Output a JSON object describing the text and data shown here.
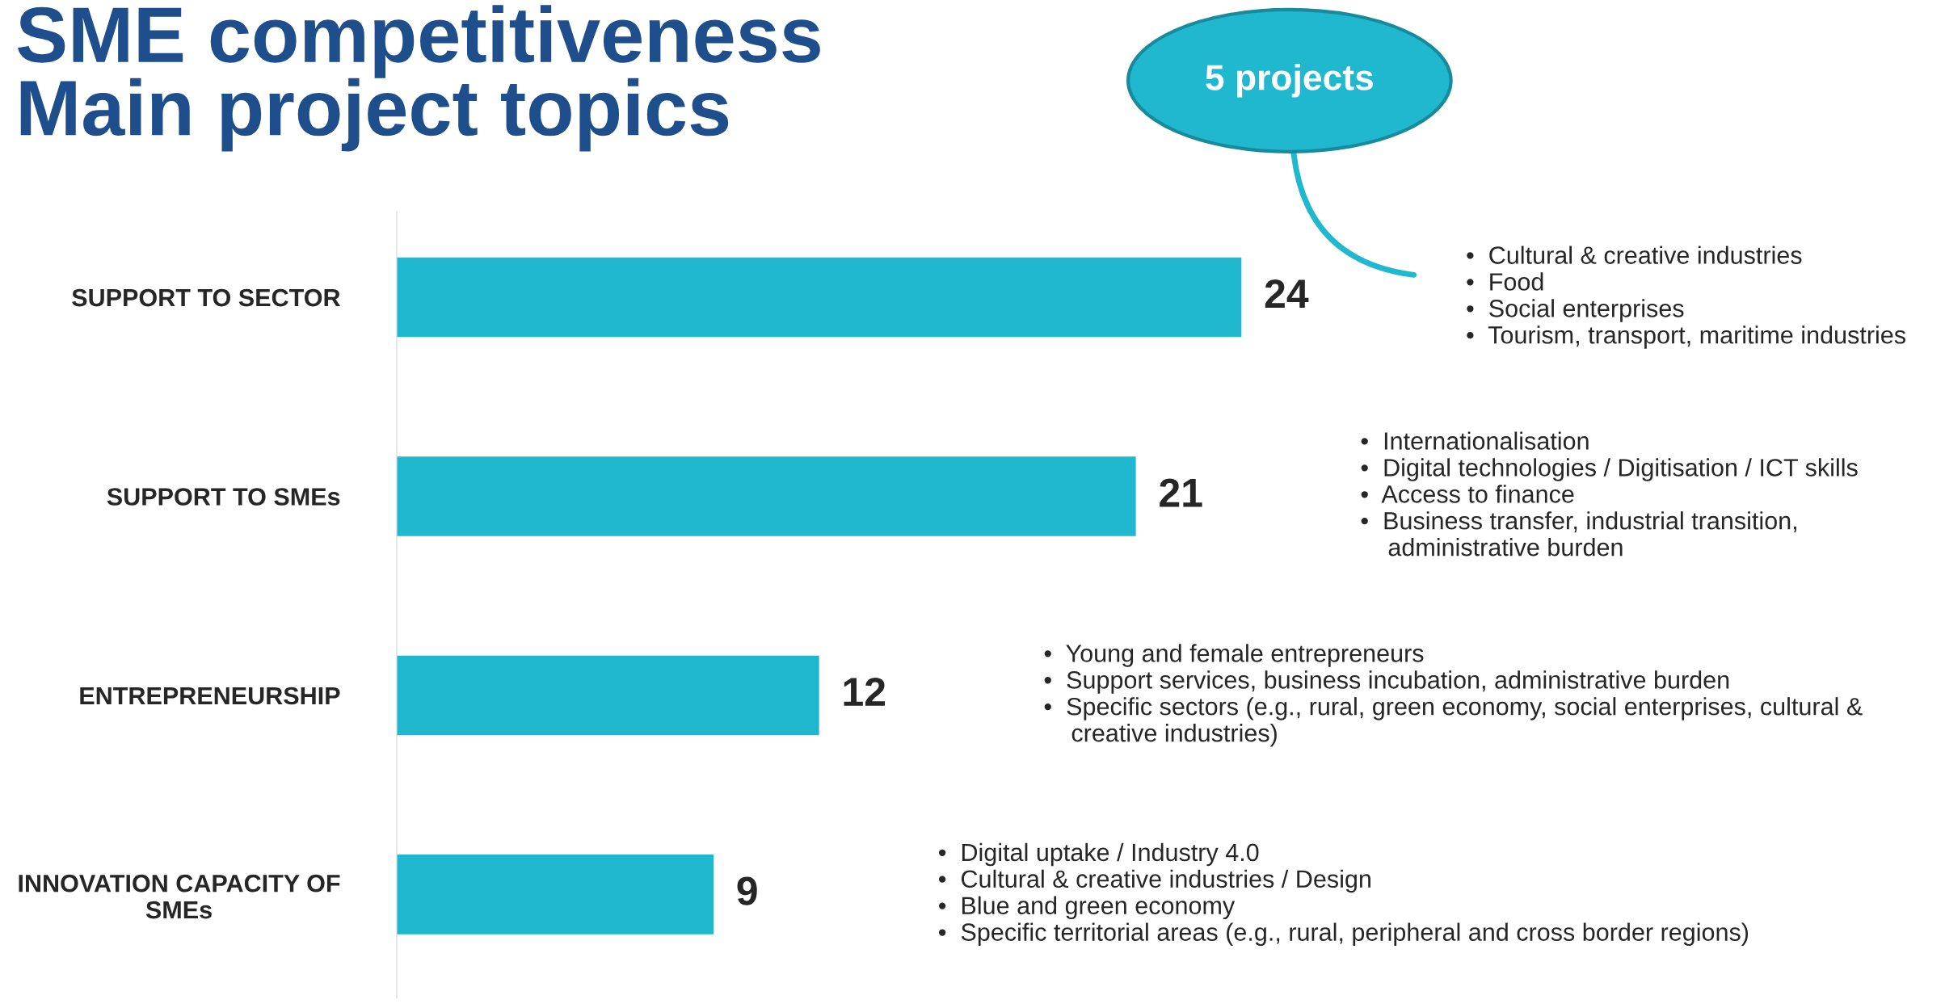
{
  "chart_data": {
    "type": "bar",
    "orientation": "horizontal",
    "title": "SME competitiveness\nMain project topics",
    "categories": [
      "SUPPORT TO SECTOR",
      "SUPPORT TO SMEs",
      "ENTREPRENEURSHIP",
      "INNOVATION CAPACITY OF\nSMEs"
    ],
    "values": [
      24,
      21,
      12,
      9
    ],
    "color": "#1fb8cf",
    "data_labels": true,
    "grid": false,
    "legend": false,
    "annotations": [
      "•  Cultural & creative industries\n•  Food\n•  Social enterprises\n•  Tourism, transport, maritime industries",
      "•  Internationalisation\n•  Digital technologies / Digitisation / ICT skills\n•  Access to finance\n•  Business transfer, industrial transition,\n    administrative burden",
      "•  Young and female entrepreneurs\n•  Support services, business incubation, administrative burden\n•  Specific sectors (e.g., rural, green economy, social enterprises, cultural &\n    creative industries)",
      "•  Digital uptake / Industry 4.0\n•  Cultural & creative industries / Design\n•  Blue and green economy\n•  Specific territorial areas (e.g., rural, peripheral and cross border regions)",
      "5 projects"
    ]
  }
}
